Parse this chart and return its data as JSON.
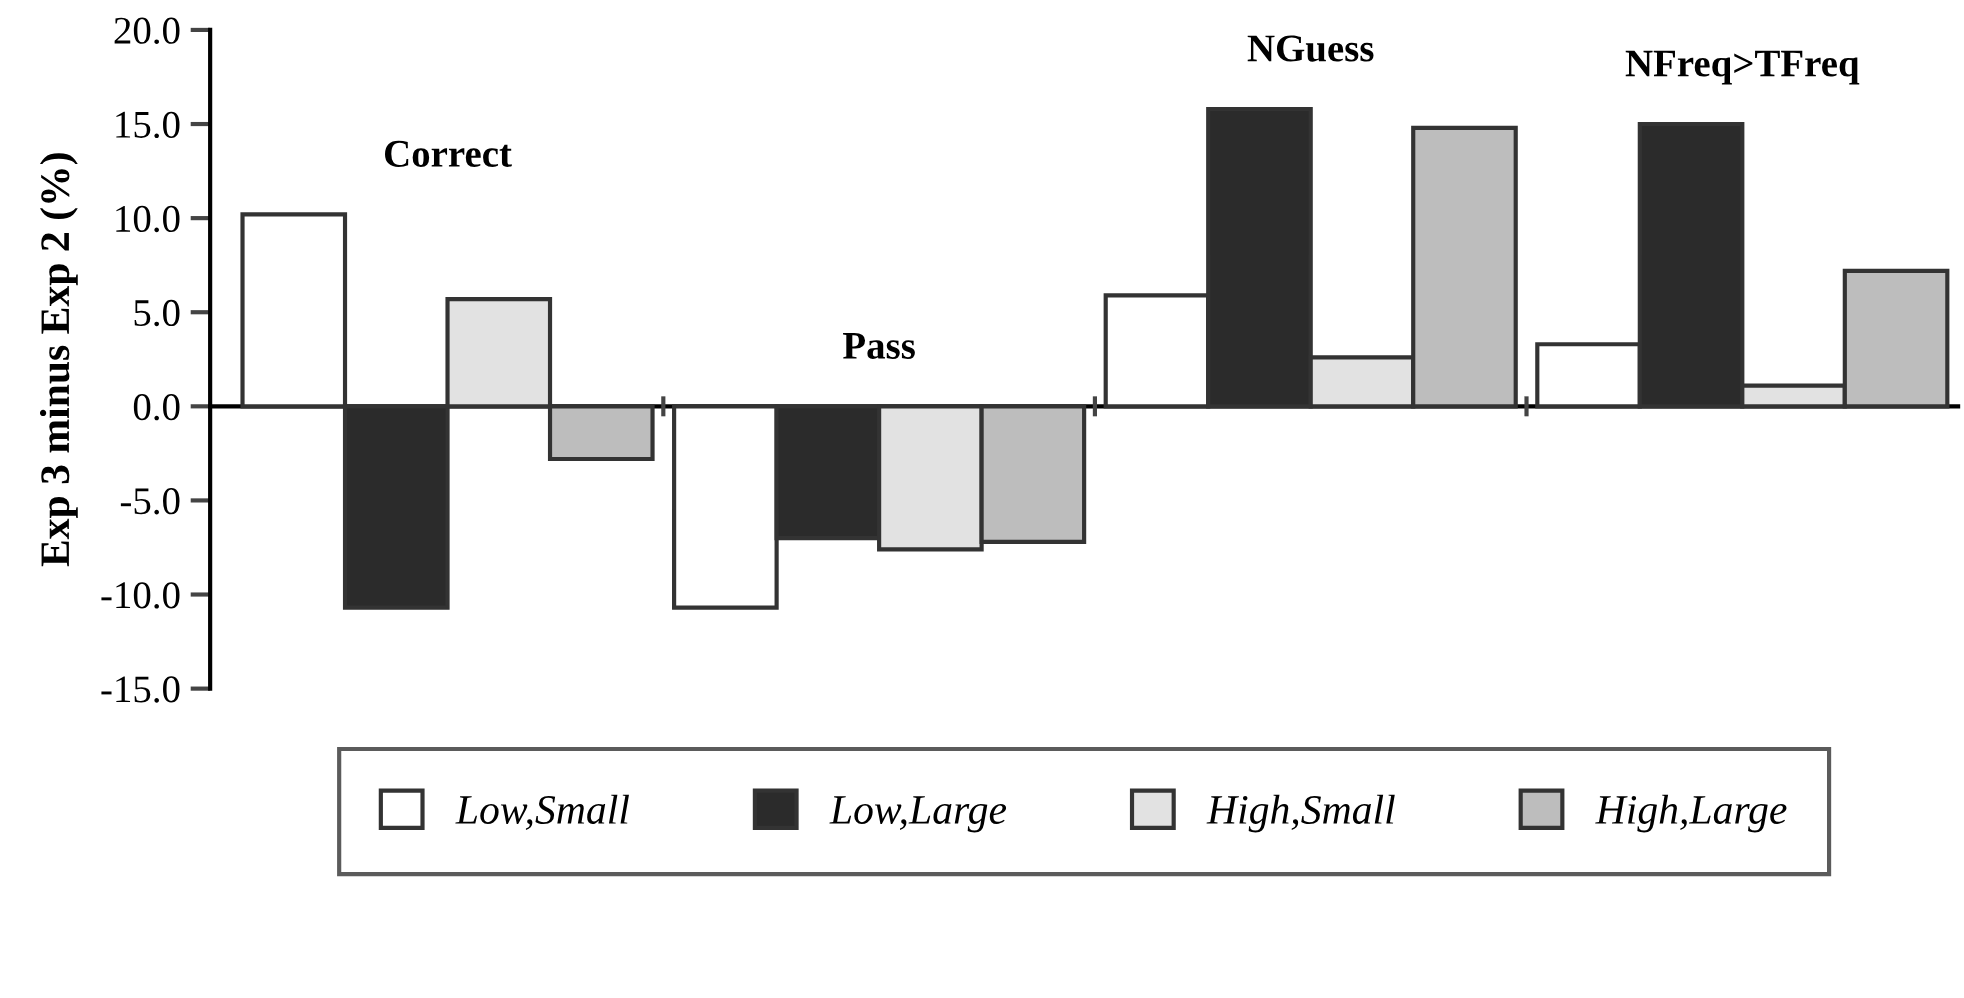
{
  "chart_data": {
    "type": "bar",
    "ylabel": "Exp 3 minus Exp 2 (%)",
    "categories": [
      "Correct",
      "Pass",
      "NGuess",
      "NFreq>TFreq"
    ],
    "series": [
      {
        "name": "Low,Small",
        "color": "#ffffff",
        "values": [
          10.2,
          -10.7,
          5.9,
          3.3
        ]
      },
      {
        "name": "Low,Large",
        "color": "#2b2b2b",
        "values": [
          -10.7,
          -7.0,
          15.8,
          15.0
        ]
      },
      {
        "name": "High,Small",
        "color": "#e2e2e2",
        "values": [
          5.7,
          -7.6,
          2.6,
          1.1
        ]
      },
      {
        "name": "High,Large",
        "color": "#bdbdbd",
        "values": [
          -2.8,
          -7.2,
          14.8,
          7.2
        ]
      }
    ],
    "ylim": [
      -15,
      20
    ],
    "yticks": [
      {
        "value": -15,
        "label": "-15.0"
      },
      {
        "value": -10,
        "label": "-10.0"
      },
      {
        "value": -5,
        "label": "-5.0"
      },
      {
        "value": 0,
        "label": "0.0"
      },
      {
        "value": 5,
        "label": "5.0"
      },
      {
        "value": 10,
        "label": "10.0"
      },
      {
        "value": 15,
        "label": "15.0"
      },
      {
        "value": 20,
        "label": "20.0"
      }
    ],
    "legend": "bottom",
    "tick_labels": "y"
  }
}
